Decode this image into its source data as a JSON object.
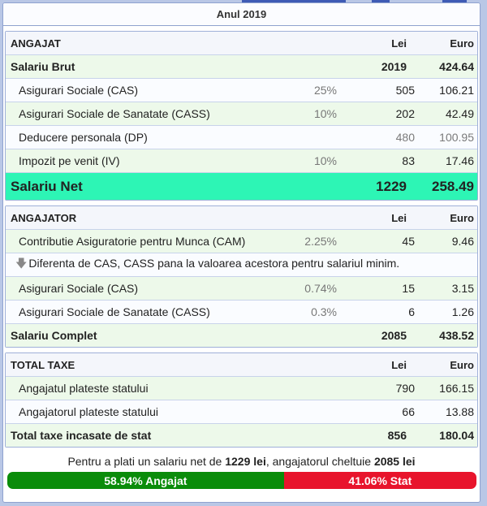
{
  "year_header": "Anul 2019",
  "angajat": {
    "header": {
      "name": "ANGAJAT",
      "lei": "Lei",
      "euro": "Euro"
    },
    "rows": [
      {
        "name": "Salariu Brut",
        "pct": "",
        "lei": "2019",
        "euro": "424.64"
      },
      {
        "name": "Asigurari Sociale (CAS)",
        "pct": "25%",
        "lei": "505",
        "euro": "106.21"
      },
      {
        "name": "Asigurari Sociale de Sanatate (CASS)",
        "pct": "10%",
        "lei": "202",
        "euro": "42.49"
      },
      {
        "name": "Deducere personala (DP)",
        "pct": "",
        "lei": "480",
        "euro": "100.95"
      },
      {
        "name": "Impozit pe venit (IV)",
        "pct": "10%",
        "lei": "83",
        "euro": "17.46"
      }
    ],
    "net": {
      "name": "Salariu Net",
      "lei": "1229",
      "euro": "258.49"
    }
  },
  "angajator": {
    "header": {
      "name": "ANGAJATOR",
      "lei": "Lei",
      "euro": "Euro"
    },
    "rows": [
      {
        "name": "Contributie Asiguratorie pentru Munca (CAM)",
        "pct": "2.25%",
        "lei": "45",
        "euro": "9.46"
      }
    ],
    "note": "Diferenta de CAS, CASS pana la valoarea acestora pentru salariul minim.",
    "rows2": [
      {
        "name": "Asigurari Sociale (CAS)",
        "pct": "0.74%",
        "lei": "15",
        "euro": "3.15"
      },
      {
        "name": "Asigurari Sociale de Sanatate (CASS)",
        "pct": "0.3%",
        "lei": "6",
        "euro": "1.26"
      }
    ],
    "total": {
      "name": "Salariu Complet",
      "lei": "2085",
      "euro": "438.52"
    }
  },
  "taxe": {
    "header": {
      "name": "TOTAL TAXE",
      "lei": "Lei",
      "euro": "Euro"
    },
    "rows": [
      {
        "name": "Angajatul plateste statului",
        "lei": "790",
        "euro": "166.15"
      },
      {
        "name": "Angajatorul plateste statului",
        "lei": "66",
        "euro": "13.88"
      }
    ],
    "total": {
      "name": "Total taxe incasate de stat",
      "lei": "856",
      "euro": "180.04"
    }
  },
  "summary": {
    "prefix": "Pentru a plati un salariu net de ",
    "net": "1229 lei",
    "middle": ", angajatorul cheltuie ",
    "total": "2085 lei"
  },
  "split": {
    "angajat_label": "58.94% Angajat",
    "stat_label": "41.06% Stat",
    "angajat_fraction": 0.5894,
    "angajat_color": "#0a8c0a",
    "stat_color": "#e8142c"
  },
  "colors": {
    "net_row": "#2df5b5",
    "highlight_row": "#edf9ea",
    "border": "#8fa2cf"
  }
}
